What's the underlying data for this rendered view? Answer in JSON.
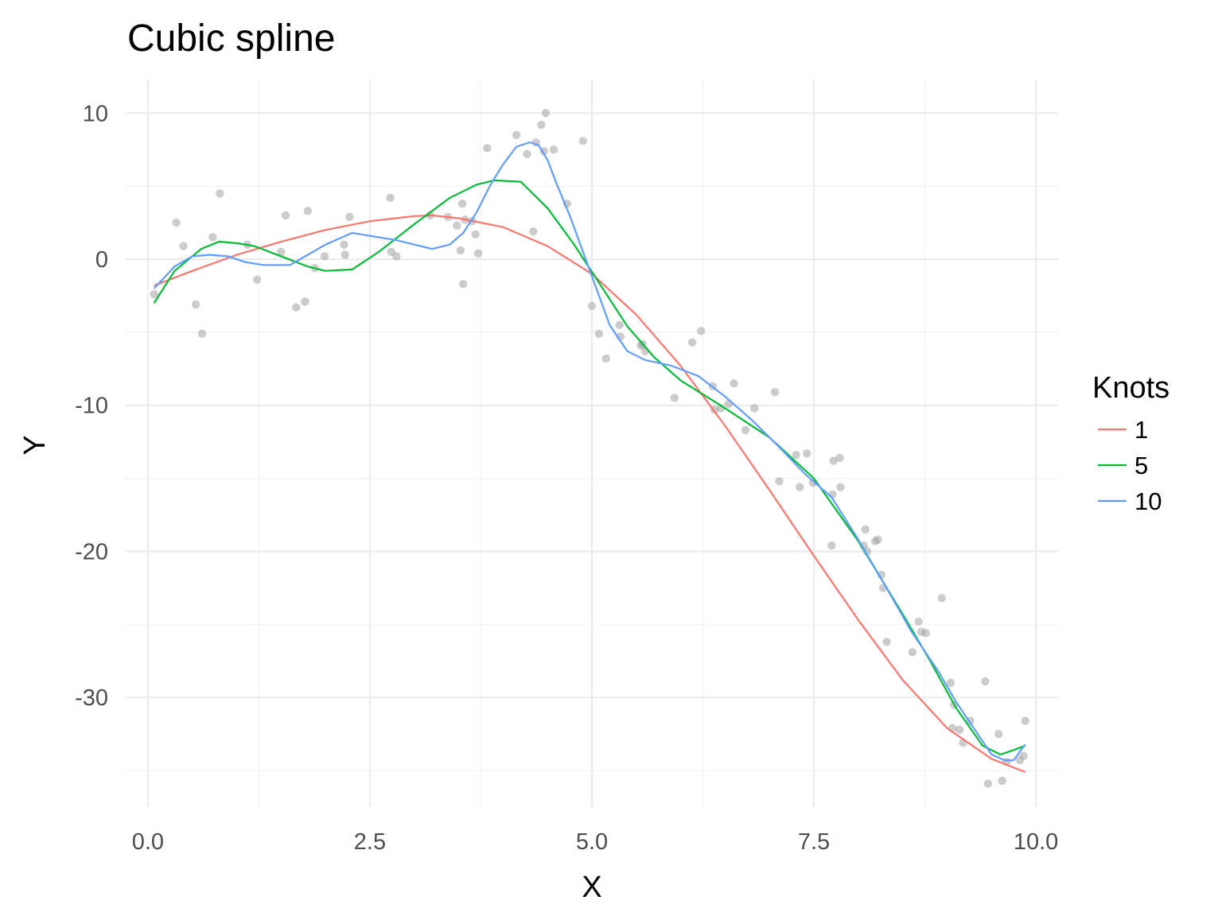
{
  "chart_data": {
    "type": "line",
    "title": "Cubic spline",
    "xlabel": "X",
    "ylabel": "Y",
    "xlim": [
      -0.25,
      10.25
    ],
    "ylim": [
      -37.5,
      12.3
    ],
    "x_ticks": [
      0.0,
      2.5,
      5.0,
      7.5,
      10.0
    ],
    "x_tick_labels": [
      "0.0",
      "2.5",
      "5.0",
      "7.5",
      "10.0"
    ],
    "y_ticks": [
      10,
      0,
      -10,
      -20,
      -30
    ],
    "y_tick_labels": [
      "10",
      "0",
      "-10",
      "-20",
      "-30"
    ],
    "grid": true,
    "legend": {
      "title": "Knots",
      "position": "right"
    },
    "points_color": "#999999",
    "scatter": [
      [
        0.07,
        -2.4
      ],
      [
        0.32,
        2.5
      ],
      [
        0.4,
        0.9
      ],
      [
        0.54,
        -3.1
      ],
      [
        0.61,
        -5.1
      ],
      [
        0.73,
        1.5
      ],
      [
        0.81,
        4.5
      ],
      [
        1.12,
        1.0
      ],
      [
        1.23,
        -1.4
      ],
      [
        1.5,
        0.5
      ],
      [
        1.55,
        3.0
      ],
      [
        1.67,
        -3.3
      ],
      [
        1.77,
        -2.9
      ],
      [
        1.8,
        3.3
      ],
      [
        1.88,
        -0.6
      ],
      [
        1.99,
        0.2
      ],
      [
        2.21,
        1.0
      ],
      [
        2.22,
        0.3
      ],
      [
        2.27,
        2.9
      ],
      [
        2.73,
        4.2
      ],
      [
        2.74,
        0.5
      ],
      [
        2.8,
        0.2
      ],
      [
        3.18,
        3.0
      ],
      [
        3.38,
        2.9
      ],
      [
        3.48,
        2.3
      ],
      [
        3.52,
        0.6
      ],
      [
        3.54,
        3.8
      ],
      [
        3.55,
        -1.7
      ],
      [
        3.57,
        2.7
      ],
      [
        3.65,
        2.6
      ],
      [
        3.69,
        1.7
      ],
      [
        3.72,
        0.4
      ],
      [
        3.82,
        7.6
      ],
      [
        4.15,
        8.5
      ],
      [
        4.27,
        7.2
      ],
      [
        4.34,
        1.9
      ],
      [
        4.37,
        8.0
      ],
      [
        4.43,
        9.2
      ],
      [
        4.46,
        7.4
      ],
      [
        4.48,
        10.0
      ],
      [
        4.57,
        7.5
      ],
      [
        4.72,
        3.8
      ],
      [
        4.9,
        8.1
      ],
      [
        5.0,
        -3.2
      ],
      [
        5.08,
        -5.1
      ],
      [
        5.16,
        -6.8
      ],
      [
        5.31,
        -4.5
      ],
      [
        5.32,
        -5.3
      ],
      [
        5.55,
        -5.9
      ],
      [
        5.57,
        -5.8
      ],
      [
        5.6,
        -6.3
      ],
      [
        5.93,
        -9.5
      ],
      [
        6.13,
        -5.7
      ],
      [
        6.23,
        -4.9
      ],
      [
        6.36,
        -8.7
      ],
      [
        6.38,
        -10.3
      ],
      [
        6.45,
        -10.2
      ],
      [
        6.54,
        -9.9
      ],
      [
        6.6,
        -8.5
      ],
      [
        6.73,
        -11.7
      ],
      [
        6.83,
        -10.2
      ],
      [
        7.06,
        -9.1
      ],
      [
        7.11,
        -15.2
      ],
      [
        7.3,
        -13.4
      ],
      [
        7.34,
        -15.6
      ],
      [
        7.42,
        -13.3
      ],
      [
        7.49,
        -15.3
      ],
      [
        7.7,
        -19.6
      ],
      [
        7.71,
        -16.1
      ],
      [
        7.72,
        -13.8
      ],
      [
        7.79,
        -13.6
      ],
      [
        7.8,
        -15.6
      ],
      [
        8.06,
        -19.6
      ],
      [
        8.08,
        -18.5
      ],
      [
        8.1,
        -20.0
      ],
      [
        8.19,
        -19.3
      ],
      [
        8.22,
        -19.2
      ],
      [
        8.26,
        -21.6
      ],
      [
        8.28,
        -22.5
      ],
      [
        8.32,
        -26.2
      ],
      [
        8.61,
        -26.9
      ],
      [
        8.68,
        -24.8
      ],
      [
        8.71,
        -25.5
      ],
      [
        8.76,
        -25.6
      ],
      [
        8.94,
        -23.2
      ],
      [
        9.04,
        -29.0
      ],
      [
        9.06,
        -32.1
      ],
      [
        9.08,
        -30.5
      ],
      [
        9.14,
        -32.2
      ],
      [
        9.18,
        -33.1
      ],
      [
        9.26,
        -31.6
      ],
      [
        9.43,
        -28.9
      ],
      [
        9.46,
        -35.9
      ],
      [
        9.58,
        -32.5
      ],
      [
        9.62,
        -35.7
      ],
      [
        9.67,
        -34.4
      ],
      [
        9.82,
        -34.3
      ],
      [
        9.86,
        -34.0
      ],
      [
        9.88,
        -31.6
      ]
    ],
    "series": [
      {
        "name": "1",
        "color": "#F8766D",
        "x": [
          0.07,
          0.5,
          1.0,
          1.5,
          2.0,
          2.5,
          3.0,
          3.2,
          3.5,
          4.0,
          4.5,
          5.0,
          5.5,
          6.0,
          6.5,
          7.0,
          7.5,
          8.0,
          8.5,
          9.0,
          9.5,
          9.88
        ],
        "y": [
          -1.8,
          -0.8,
          0.3,
          1.2,
          2.0,
          2.6,
          2.95,
          3.0,
          2.8,
          2.2,
          0.9,
          -1.0,
          -3.8,
          -7.3,
          -11.4,
          -15.8,
          -20.3,
          -24.7,
          -28.8,
          -32.1,
          -34.2,
          -35.1
        ]
      },
      {
        "name": "5",
        "color": "#00BA38",
        "x": [
          0.07,
          0.3,
          0.6,
          0.8,
          1.0,
          1.2,
          1.5,
          1.8,
          2.0,
          2.3,
          2.6,
          3.0,
          3.4,
          3.7,
          3.9,
          4.2,
          4.5,
          4.8,
          5.1,
          5.4,
          5.7,
          6.0,
          6.5,
          7.0,
          7.5,
          8.0,
          8.5,
          8.8,
          9.1,
          9.4,
          9.6,
          9.75,
          9.88
        ],
        "y": [
          -3.0,
          -0.8,
          0.7,
          1.2,
          1.1,
          0.9,
          0.2,
          -0.5,
          -0.8,
          -0.7,
          0.5,
          2.4,
          4.2,
          5.1,
          5.4,
          5.3,
          3.5,
          1.0,
          -1.8,
          -4.6,
          -6.7,
          -8.3,
          -10.2,
          -12.2,
          -15.0,
          -19.3,
          -24.3,
          -27.4,
          -30.7,
          -33.3,
          -33.9,
          -33.6,
          -33.3
        ]
      },
      {
        "name": "10",
        "color": "#619CFF",
        "x": [
          0.07,
          0.3,
          0.5,
          0.7,
          0.9,
          1.1,
          1.3,
          1.6,
          1.8,
          2.0,
          2.3,
          2.6,
          2.8,
          3.0,
          3.2,
          3.4,
          3.55,
          3.7,
          3.85,
          4.0,
          4.15,
          4.3,
          4.4,
          4.5,
          4.6,
          4.75,
          4.9,
          5.05,
          5.2,
          5.4,
          5.6,
          5.9,
          6.2,
          6.5,
          6.8,
          7.1,
          7.4,
          7.7,
          8.0,
          8.3,
          8.6,
          8.9,
          9.1,
          9.3,
          9.5,
          9.65,
          9.75,
          9.88
        ],
        "y": [
          -2.0,
          -0.5,
          0.2,
          0.3,
          0.2,
          -0.2,
          -0.4,
          -0.4,
          0.3,
          1.0,
          1.8,
          1.5,
          1.3,
          1.0,
          0.7,
          1.0,
          1.8,
          3.2,
          5.0,
          6.5,
          7.7,
          8.0,
          7.8,
          6.8,
          5.2,
          3.0,
          0.5,
          -2.0,
          -4.5,
          -6.3,
          -6.9,
          -7.3,
          -8.0,
          -9.4,
          -11.0,
          -12.8,
          -14.7,
          -16.3,
          -19.2,
          -22.3,
          -25.5,
          -28.2,
          -30.3,
          -32.1,
          -33.9,
          -34.3,
          -34.3,
          -33.2
        ]
      }
    ]
  }
}
